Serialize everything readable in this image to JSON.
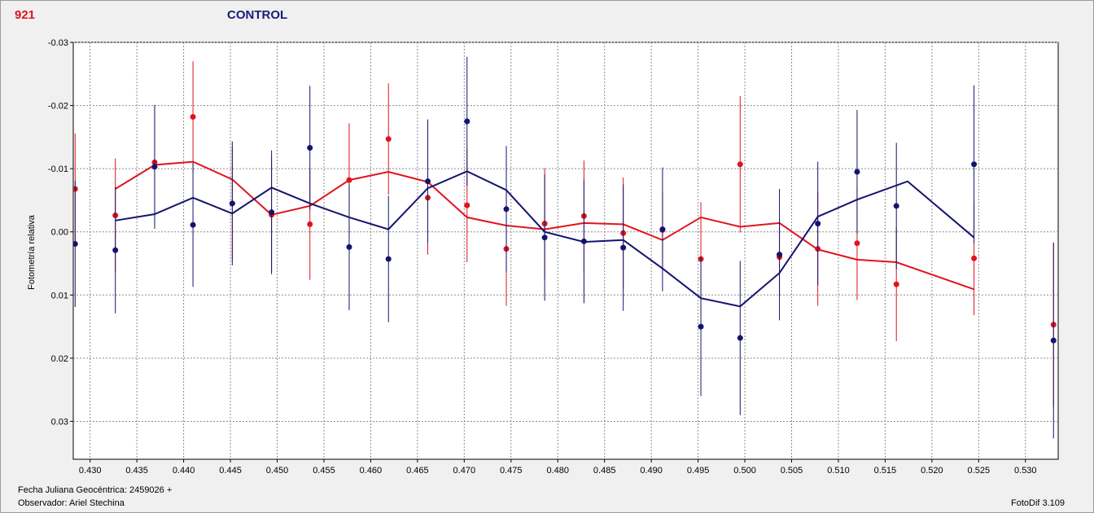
{
  "header": {
    "id_label": "921",
    "series_label": "CONTROL"
  },
  "footer": {
    "jd_label": "Fecha Juliana Geocéntrica: 2459026 +",
    "observer_label": "Observador: Ariel Stechina",
    "version_label": "FotoDif 3.109"
  },
  "colors": {
    "red": "#e0141e",
    "blue": "#14146e",
    "grid": "#8c8c8c"
  },
  "chart_data": {
    "type": "scatter",
    "ylabel": "Fotometría relativa",
    "xlim": [
      0.4282,
      0.5335
    ],
    "ylim": [
      0.036,
      -0.03
    ],
    "y_inverted": true,
    "grid": true,
    "x_ticks": [
      0.43,
      0.435,
      0.44,
      0.445,
      0.45,
      0.455,
      0.46,
      0.465,
      0.47,
      0.475,
      0.48,
      0.485,
      0.49,
      0.495,
      0.5,
      0.505,
      0.51,
      0.515,
      0.52,
      0.525,
      0.53
    ],
    "x_tick_labels": [
      "0.430",
      "0.435",
      "0.440",
      "0.445",
      "0.450",
      "0.455",
      "0.460",
      "0.465",
      "0.470",
      "0.475",
      "0.480",
      "0.485",
      "0.490",
      "0.495",
      "0.500",
      "0.505",
      "0.510",
      "0.515",
      "0.520",
      "0.525",
      "0.530"
    ],
    "y_ticks": [
      -0.03,
      -0.02,
      -0.01,
      0.0,
      0.01,
      0.02,
      0.03
    ],
    "y_tick_labels": [
      "-0.03",
      "-0.02",
      "-0.01",
      "0.00",
      "0.01",
      "0.02",
      "0.03"
    ],
    "series": [
      {
        "color": "red",
        "points": [
          {
            "x": 0.4284,
            "y": -0.0068,
            "err": 0.0088
          },
          {
            "x": 0.4327,
            "y": -0.0026,
            "err": 0.009
          },
          {
            "x": 0.4369,
            "y": -0.011,
            "err": 0.009
          },
          {
            "x": 0.441,
            "y": -0.0182,
            "err": 0.0088
          },
          {
            "x": 0.4452,
            "y": -0.0045,
            "err": 0.009
          },
          {
            "x": 0.4494,
            "y": -0.0027,
            "err": 0.009
          },
          {
            "x": 0.4535,
            "y": -0.0012,
            "err": 0.0088
          },
          {
            "x": 0.4577,
            "y": -0.0082,
            "err": 0.009
          },
          {
            "x": 0.4619,
            "y": -0.0147,
            "err": 0.0088
          },
          {
            "x": 0.4661,
            "y": -0.0054,
            "err": 0.009
          },
          {
            "x": 0.4703,
            "y": -0.0042,
            "err": 0.009
          },
          {
            "x": 0.4745,
            "y": 0.0027,
            "err": 0.009
          },
          {
            "x": 0.4786,
            "y": -0.0013,
            "err": 0.0088
          },
          {
            "x": 0.4828,
            "y": -0.0025,
            "err": 0.0088
          },
          {
            "x": 0.487,
            "y": 0.0002,
            "err": 0.0088
          },
          {
            "x": 0.4912,
            "y": -0.0003,
            "err": 0.006
          },
          {
            "x": 0.4953,
            "y": 0.0043,
            "err": 0.009
          },
          {
            "x": 0.4995,
            "y": -0.0107,
            "err": 0.0108
          },
          {
            "x": 0.5037,
            "y": 0.004,
            "err": 0.006
          },
          {
            "x": 0.5078,
            "y": 0.0027,
            "err": 0.009
          },
          {
            "x": 0.512,
            "y": 0.0018,
            "err": 0.009
          },
          {
            "x": 0.5162,
            "y": 0.0083,
            "err": 0.009
          },
          {
            "x": 0.5245,
            "y": 0.0042,
            "err": 0.009
          },
          {
            "x": 0.533,
            "y": 0.0147,
            "err": 0.013
          }
        ],
        "line": [
          {
            "x": 0.4327,
            "y": -0.0068
          },
          {
            "x": 0.4369,
            "y": -0.0106
          },
          {
            "x": 0.441,
            "y": -0.0111
          },
          {
            "x": 0.4452,
            "y": -0.0083
          },
          {
            "x": 0.4494,
            "y": -0.0027
          },
          {
            "x": 0.4535,
            "y": -0.0041
          },
          {
            "x": 0.4577,
            "y": -0.0082
          },
          {
            "x": 0.4619,
            "y": -0.0095
          },
          {
            "x": 0.4661,
            "y": -0.0079
          },
          {
            "x": 0.4703,
            "y": -0.0023
          },
          {
            "x": 0.4745,
            "y": -0.001
          },
          {
            "x": 0.4786,
            "y": -0.0004
          },
          {
            "x": 0.4828,
            "y": -0.0014
          },
          {
            "x": 0.487,
            "y": -0.0012
          },
          {
            "x": 0.4912,
            "y": 0.0013
          },
          {
            "x": 0.4953,
            "y": -0.0023
          },
          {
            "x": 0.4995,
            "y": -0.0008
          },
          {
            "x": 0.5037,
            "y": -0.0014
          },
          {
            "x": 0.5078,
            "y": 0.0028
          },
          {
            "x": 0.512,
            "y": 0.0044
          },
          {
            "x": 0.5162,
            "y": 0.0048
          },
          {
            "x": 0.5245,
            "y": 0.0091
          }
        ]
      },
      {
        "color": "blue",
        "points": [
          {
            "x": 0.4284,
            "y": 0.0019,
            "err": 0.01
          },
          {
            "x": 0.4327,
            "y": 0.0029,
            "err": 0.01
          },
          {
            "x": 0.4369,
            "y": -0.0103,
            "err": 0.0098
          },
          {
            "x": 0.441,
            "y": -0.0011,
            "err": 0.0098
          },
          {
            "x": 0.4452,
            "y": -0.0045,
            "err": 0.0098
          },
          {
            "x": 0.4494,
            "y": -0.0031,
            "err": 0.0098
          },
          {
            "x": 0.4535,
            "y": -0.0133,
            "err": 0.0098
          },
          {
            "x": 0.4577,
            "y": 0.0024,
            "err": 0.01
          },
          {
            "x": 0.4619,
            "y": 0.0043,
            "err": 0.01
          },
          {
            "x": 0.4661,
            "y": -0.008,
            "err": 0.0098
          },
          {
            "x": 0.4703,
            "y": -0.0175,
            "err": 0.0102
          },
          {
            "x": 0.4745,
            "y": -0.0036,
            "err": 0.01
          },
          {
            "x": 0.4786,
            "y": 0.0009,
            "err": 0.01
          },
          {
            "x": 0.4828,
            "y": 0.0015,
            "err": 0.0098
          },
          {
            "x": 0.487,
            "y": 0.0025,
            "err": 0.01
          },
          {
            "x": 0.4912,
            "y": -0.0004,
            "err": 0.0098
          },
          {
            "x": 0.4953,
            "y": 0.015,
            "err": 0.011
          },
          {
            "x": 0.4995,
            "y": 0.0168,
            "err": 0.0122
          },
          {
            "x": 0.5037,
            "y": 0.0036,
            "err": 0.0104
          },
          {
            "x": 0.5078,
            "y": -0.0013,
            "err": 0.0098
          },
          {
            "x": 0.512,
            "y": -0.0095,
            "err": 0.0098
          },
          {
            "x": 0.5162,
            "y": -0.0041,
            "err": 0.01
          },
          {
            "x": 0.5245,
            "y": -0.0107,
            "err": 0.0125
          },
          {
            "x": 0.533,
            "y": 0.0172,
            "err": 0.0155
          }
        ],
        "line": [
          {
            "x": 0.4327,
            "y": -0.0018
          },
          {
            "x": 0.4369,
            "y": -0.0028
          },
          {
            "x": 0.441,
            "y": -0.0054
          },
          {
            "x": 0.4452,
            "y": -0.0029
          },
          {
            "x": 0.4494,
            "y": -0.007
          },
          {
            "x": 0.4535,
            "y": -0.0045
          },
          {
            "x": 0.4577,
            "y": -0.0023
          },
          {
            "x": 0.4619,
            "y": -0.0004
          },
          {
            "x": 0.4661,
            "y": -0.0069
          },
          {
            "x": 0.4703,
            "y": -0.0096
          },
          {
            "x": 0.4745,
            "y": -0.0066
          },
          {
            "x": 0.4786,
            "y": 0.0
          },
          {
            "x": 0.4828,
            "y": 0.0016
          },
          {
            "x": 0.487,
            "y": 0.0013
          },
          {
            "x": 0.4912,
            "y": 0.0058
          },
          {
            "x": 0.4953,
            "y": 0.0105
          },
          {
            "x": 0.4995,
            "y": 0.0118
          },
          {
            "x": 0.5037,
            "y": 0.0065
          },
          {
            "x": 0.5078,
            "y": -0.0024
          },
          {
            "x": 0.512,
            "y": -0.0051
          },
          {
            "x": 0.5174,
            "y": -0.008
          },
          {
            "x": 0.5245,
            "y": 0.0009
          }
        ]
      }
    ]
  }
}
